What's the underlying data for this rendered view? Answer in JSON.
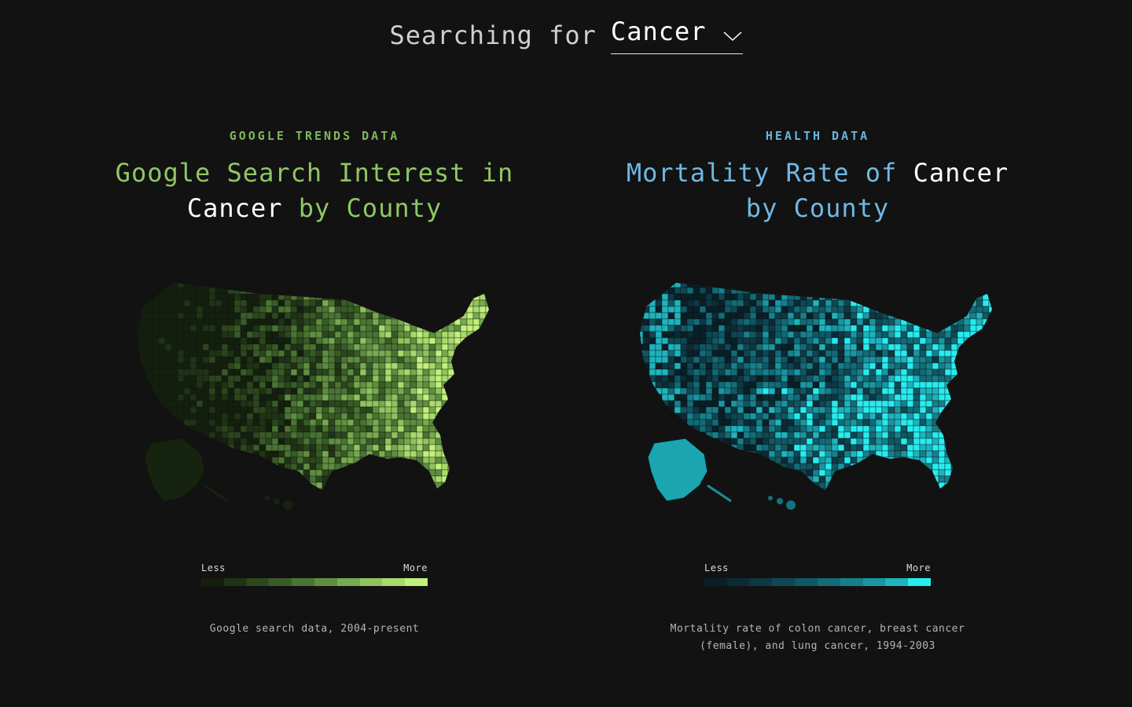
{
  "header": {
    "searching_label": "Searching for",
    "term": "Cancer"
  },
  "panels": [
    {
      "eyebrow": "GOOGLE TRENDS DATA",
      "title_pre": "Google Search Interest in",
      "title_term": "Cancer",
      "title_post": "by County",
      "legend_less": "Less",
      "legend_more": "More",
      "legend_colors": [
        "#141f0f",
        "#1f3316",
        "#2c471e",
        "#395c27",
        "#4a7433",
        "#5f8e41",
        "#77a950",
        "#90c35e",
        "#a9da6c",
        "#c2f07c"
      ],
      "caption": "Google search data, 2004-present",
      "map_colors": {
        "low": "#16240f",
        "mid": "#4c7334",
        "high": "#a4d56a",
        "border": "#0f170a"
      }
    },
    {
      "eyebrow": "HEALTH DATA",
      "title_pre": "Mortality Rate of",
      "title_term": "Cancer",
      "title_post": "by County",
      "legend_less": "Less",
      "legend_more": "More",
      "legend_colors": [
        "#0b1f26",
        "#0d2b34",
        "#0e3843",
        "#0f4752",
        "#105863",
        "#136b76",
        "#177f8a",
        "#1a96a1",
        "#1fb3bd",
        "#27ecef"
      ],
      "caption_line1": "Mortality rate of colon cancer, breast cancer",
      "caption_line2": "(female), and lung cancer, 1994-2003",
      "map_colors": {
        "low": "#0a2a33",
        "mid": "#167f8a",
        "high": "#2de8ec",
        "border": "#06161b"
      }
    }
  ]
}
